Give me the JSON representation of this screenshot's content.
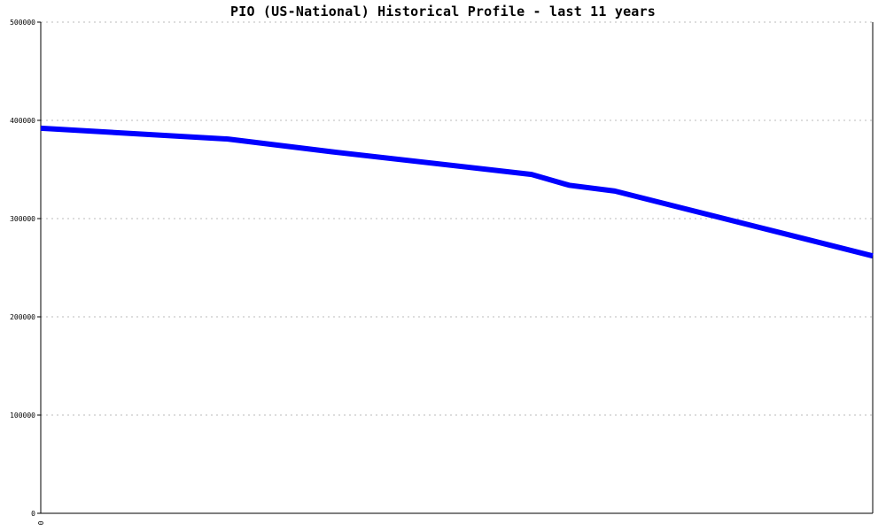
{
  "chart_data": {
    "type": "line",
    "title": "PIO (US-National) Historical Profile - last 11 years",
    "xlabel": "",
    "ylabel": "",
    "x_tick_labels": [
      "0"
    ],
    "y_ticks": [
      0,
      100000,
      200000,
      300000,
      400000,
      500000
    ],
    "y_tick_labels": [
      "0",
      "100000",
      "200000",
      "300000",
      "400000",
      "500000"
    ],
    "ylim": [
      0,
      500000
    ],
    "grid": true,
    "legend": "none",
    "series": [
      {
        "color": "#0000ff",
        "values": [
          392000,
          381000,
          368000,
          345000,
          334000,
          328000,
          262000
        ]
      }
    ]
  }
}
